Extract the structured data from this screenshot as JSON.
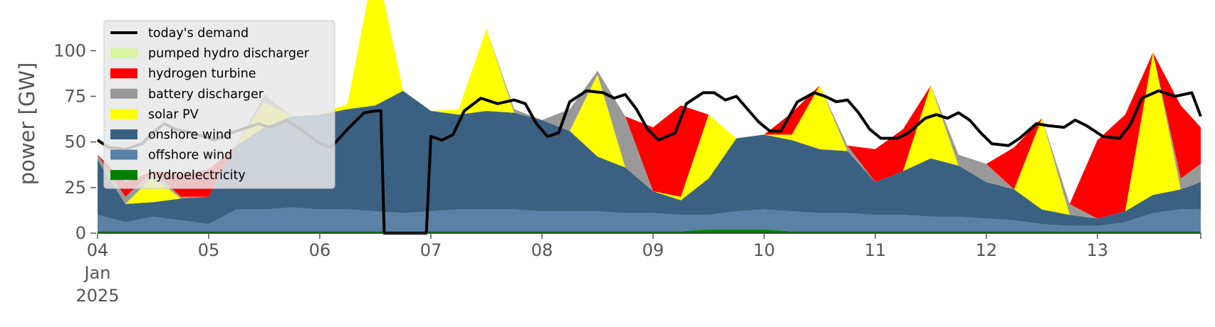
{
  "chart_data": {
    "type": "area",
    "title": "",
    "xlabel": "",
    "ylabel": "power [GW]",
    "ylim": [
      0,
      120
    ],
    "yticks": [
      0,
      25,
      50,
      75,
      100
    ],
    "xlim": [
      0,
      9.93
    ],
    "x_tick_labels": [
      {
        "x": 0,
        "lines": [
          "04",
          "Jan",
          "2025"
        ]
      },
      {
        "x": 1,
        "lines": [
          "05"
        ]
      },
      {
        "x": 2,
        "lines": [
          "06"
        ]
      },
      {
        "x": 3,
        "lines": [
          "07"
        ]
      },
      {
        "x": 4,
        "lines": [
          "08"
        ]
      },
      {
        "x": 5,
        "lines": [
          "09"
        ]
      },
      {
        "x": 6,
        "lines": [
          "10"
        ]
      },
      {
        "x": 7,
        "lines": [
          "11"
        ]
      },
      {
        "x": 8,
        "lines": [
          "12"
        ]
      },
      {
        "x": 9,
        "lines": [
          "13"
        ]
      }
    ],
    "x_unit_note": "x values are in days since 04 Jan 2025 00:00",
    "grid": false,
    "legend_position": "upper-left",
    "legend": [
      {
        "label": "today's demand",
        "color": "#000000",
        "kind": "line"
      },
      {
        "label": "pumped hydro discharger",
        "color": "#d8f5a2",
        "kind": "patch"
      },
      {
        "label": "hydrogen turbine",
        "color": "#ff0000",
        "kind": "patch"
      },
      {
        "label": "battery discharger",
        "color": "#999999",
        "kind": "patch"
      },
      {
        "label": "solar PV",
        "color": "#ffff00",
        "kind": "patch"
      },
      {
        "label": "onshore wind",
        "color": "#3b6182",
        "kind": "patch"
      },
      {
        "label": "offshore wind",
        "color": "#5b81a6",
        "kind": "patch"
      },
      {
        "label": "hydroelectricity",
        "color": "#008000",
        "kind": "patch"
      }
    ],
    "x": [
      0,
      0.25,
      0.5,
      0.75,
      1,
      1.25,
      1.5,
      1.75,
      2,
      2.25,
      2.5,
      2.75,
      3,
      3.25,
      3.5,
      3.75,
      4,
      4.25,
      4.5,
      4.75,
      5,
      5.25,
      5.5,
      5.75,
      6,
      6.25,
      6.5,
      6.75,
      7,
      7.25,
      7.5,
      7.75,
      8,
      8.25,
      8.5,
      8.75,
      9,
      9.25,
      9.5,
      9.75,
      9.93
    ],
    "series": [
      {
        "name": "hydroelectricity",
        "color": "#008000",
        "values": [
          1,
          1,
          1,
          1,
          1,
          1,
          1,
          1,
          1,
          1,
          1,
          1,
          1,
          1,
          1,
          1,
          1,
          1,
          1,
          1,
          1,
          1,
          2,
          2,
          2,
          1,
          1,
          1,
          1,
          1,
          1,
          1,
          1,
          1,
          1,
          1,
          1,
          1,
          1,
          1,
          1
        ]
      },
      {
        "name": "offshore wind",
        "color": "#5b81a6",
        "values": [
          9,
          5,
          8,
          6,
          4,
          12,
          12,
          13,
          12,
          12,
          11,
          10,
          11,
          12,
          12,
          12,
          11,
          11,
          11,
          10,
          10,
          9,
          8,
          10,
          11,
          11,
          10,
          10,
          9,
          9,
          8,
          8,
          7,
          6,
          4,
          3,
          3,
          5,
          10,
          12,
          12
        ]
      },
      {
        "name": "onshore wind",
        "color": "#3b6182",
        "values": [
          30,
          10,
          8,
          12,
          15,
          35,
          45,
          50,
          52,
          55,
          58,
          67,
          55,
          52,
          54,
          53,
          50,
          44,
          30,
          25,
          12,
          8,
          20,
          40,
          41,
          39,
          35,
          34,
          18,
          24,
          32,
          28,
          20,
          17,
          8,
          6,
          4,
          6,
          10,
          11,
          15
        ]
      },
      {
        "name": "solar PV",
        "color": "#ffff00",
        "values": [
          0,
          0,
          14,
          0,
          0,
          0,
          14,
          0,
          0,
          3,
          80,
          0,
          0,
          3,
          45,
          0,
          0,
          0,
          45,
          0,
          0,
          2,
          35,
          0,
          0,
          3,
          35,
          0,
          0,
          0,
          40,
          0,
          0,
          0,
          50,
          0,
          0,
          0,
          78,
          0,
          0
        ]
      },
      {
        "name": "battery discharger",
        "color": "#999999",
        "values": [
          3,
          4,
          3,
          1,
          0,
          0,
          4,
          0,
          0,
          0,
          0,
          0,
          0,
          0,
          0,
          2,
          0,
          12,
          2,
          28,
          0,
          0,
          0,
          0,
          0,
          0,
          0,
          3,
          0,
          0,
          0,
          6,
          10,
          0,
          0,
          6,
          0,
          0,
          0,
          6,
          10
        ]
      },
      {
        "name": "hydrogen turbine",
        "color": "#ff0000",
        "values": [
          0,
          8,
          0,
          12,
          15,
          0,
          0,
          0,
          0,
          0,
          0,
          0,
          0,
          0,
          0,
          0,
          0,
          0,
          0,
          0,
          35,
          50,
          0,
          0,
          0,
          12,
          0,
          0,
          18,
          23,
          0,
          0,
          0,
          23,
          0,
          0,
          43,
          53,
          0,
          40,
          20
        ]
      },
      {
        "name": "pumped hydro discharger",
        "color": "#d8f5a2",
        "values": [
          0,
          0,
          0,
          0,
          0,
          0,
          0,
          0,
          0,
          0,
          0,
          0,
          0,
          0,
          0,
          0,
          0,
          0,
          0,
          0,
          0,
          0,
          0,
          0,
          0,
          0,
          0,
          0,
          0,
          0,
          0,
          0,
          0,
          0,
          0,
          0,
          0,
          0,
          0,
          0,
          0
        ]
      }
    ],
    "demand": {
      "name": "today's demand",
      "color": "#000000",
      "points": [
        [
          0,
          51
        ],
        [
          0.1,
          47
        ],
        [
          0.25,
          46
        ],
        [
          0.4,
          49
        ],
        [
          0.5,
          55
        ],
        [
          0.6,
          60
        ],
        [
          0.7,
          57
        ],
        [
          0.85,
          55
        ],
        [
          0.95,
          53
        ],
        [
          1.05,
          51
        ],
        [
          1.25,
          56
        ],
        [
          1.45,
          60
        ],
        [
          1.55,
          58
        ],
        [
          1.7,
          62
        ],
        [
          1.85,
          56
        ],
        [
          2.0,
          49
        ],
        [
          2.1,
          47
        ],
        [
          2.25,
          57
        ],
        [
          2.4,
          66
        ],
        [
          2.5,
          67
        ],
        [
          2.55,
          67
        ],
        [
          2.58,
          0
        ],
        [
          2.96,
          0
        ],
        [
          3.0,
          53
        ],
        [
          3.1,
          51
        ],
        [
          3.2,
          54
        ],
        [
          3.3,
          67
        ],
        [
          3.45,
          74
        ],
        [
          3.6,
          71
        ],
        [
          3.75,
          73
        ],
        [
          3.85,
          71
        ],
        [
          3.95,
          60
        ],
        [
          4.05,
          53
        ],
        [
          4.15,
          55
        ],
        [
          4.25,
          72
        ],
        [
          4.4,
          78
        ],
        [
          4.55,
          77
        ],
        [
          4.65,
          74
        ],
        [
          4.75,
          76
        ],
        [
          4.85,
          68
        ],
        [
          4.95,
          57
        ],
        [
          5.05,
          51
        ],
        [
          5.2,
          55
        ],
        [
          5.3,
          71
        ],
        [
          5.45,
          77
        ],
        [
          5.55,
          77
        ],
        [
          5.65,
          73
        ],
        [
          5.75,
          75
        ],
        [
          5.85,
          68
        ],
        [
          5.95,
          61
        ],
        [
          6.05,
          56
        ],
        [
          6.15,
          56
        ],
        [
          6.3,
          72
        ],
        [
          6.45,
          77
        ],
        [
          6.55,
          75
        ],
        [
          6.65,
          72
        ],
        [
          6.75,
          73
        ],
        [
          6.85,
          66
        ],
        [
          6.95,
          57
        ],
        [
          7.05,
          52
        ],
        [
          7.2,
          52
        ],
        [
          7.3,
          55
        ],
        [
          7.45,
          63
        ],
        [
          7.55,
          65
        ],
        [
          7.65,
          63
        ],
        [
          7.75,
          66
        ],
        [
          7.85,
          62
        ],
        [
          7.95,
          55
        ],
        [
          8.05,
          49
        ],
        [
          8.2,
          48
        ],
        [
          8.3,
          52
        ],
        [
          8.45,
          60
        ],
        [
          8.55,
          59
        ],
        [
          8.7,
          58
        ],
        [
          8.8,
          62
        ],
        [
          8.9,
          59
        ],
        [
          9.05,
          53
        ],
        [
          9.2,
          52
        ],
        [
          9.3,
          60
        ],
        [
          9.4,
          74
        ],
        [
          9.55,
          78
        ],
        [
          9.7,
          75
        ],
        [
          9.85,
          77
        ],
        [
          9.93,
          64
        ]
      ]
    }
  }
}
